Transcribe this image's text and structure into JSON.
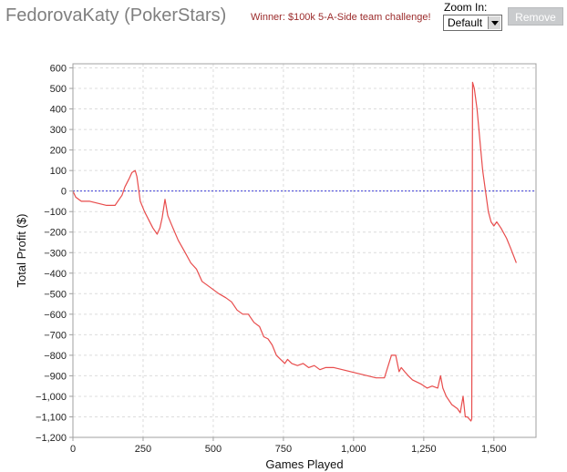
{
  "header": {
    "player_name": "FedorovaKaty (PokerStars)",
    "award": "Winner: $100k 5-A-Side team challenge!",
    "zoom_label": "Zoom In:",
    "zoom_value": "Default",
    "remove_label": "Remove"
  },
  "colors": {
    "series": "#e84c4c",
    "zero_line": "#3b3bd6",
    "grid": "#dcdcdc",
    "axis": "#a0a0a0"
  },
  "chart_data": {
    "type": "line",
    "title": "",
    "xlabel": "Games Played",
    "ylabel": "Total Profit ($)",
    "xlim": [
      0,
      1650
    ],
    "ylim": [
      -1200,
      620
    ],
    "xticks": [
      0,
      250,
      500,
      750,
      1000,
      1250,
      1500
    ],
    "xtick_labels": [
      "0",
      "250",
      "500",
      "750",
      "1,000",
      "1,250",
      "1,500"
    ],
    "yticks": [
      600,
      500,
      400,
      300,
      200,
      100,
      0,
      -100,
      -200,
      -300,
      -400,
      -500,
      -600,
      -700,
      -800,
      -900,
      -1000,
      -1100,
      -1200
    ],
    "ytick_labels": [
      "600",
      "500",
      "400",
      "300",
      "200",
      "100",
      "0",
      "−100",
      "−200",
      "−300",
      "−400",
      "−500",
      "−600",
      "−700",
      "−800",
      "−900",
      "−1,000",
      "−1,100",
      "−1,200"
    ],
    "grid": true,
    "reference_line_y": 0,
    "series": [
      {
        "x": [
          0,
          10,
          30,
          60,
          90,
          120,
          150,
          165,
          175,
          185,
          200,
          210,
          222,
          228,
          240,
          255,
          270,
          285,
          300,
          310,
          318,
          328,
          338,
          350,
          375,
          400,
          420,
          440,
          460,
          480,
          500,
          520,
          545,
          565,
          585,
          605,
          625,
          645,
          665,
          680,
          695,
          710,
          725,
          740,
          755,
          765,
          780,
          800,
          820,
          840,
          860,
          880,
          900,
          930,
          960,
          990,
          1020,
          1050,
          1080,
          1110,
          1135,
          1150,
          1162,
          1170,
          1182,
          1195,
          1210,
          1240,
          1262,
          1280,
          1300,
          1310,
          1318,
          1330,
          1350,
          1370,
          1380,
          1390,
          1398,
          1405,
          1412,
          1418,
          1421,
          1424,
          1430,
          1440,
          1450,
          1460,
          1470,
          1480,
          1490,
          1500,
          1510,
          1525,
          1545,
          1560,
          1580
        ],
        "y": [
          0,
          -30,
          -50,
          -50,
          -60,
          -70,
          -70,
          -40,
          -20,
          20,
          60,
          90,
          100,
          70,
          -50,
          -100,
          -140,
          -180,
          -210,
          -180,
          -130,
          -40,
          -120,
          -160,
          -240,
          -300,
          -350,
          -380,
          -440,
          -460,
          -480,
          -500,
          -520,
          -540,
          -580,
          -600,
          -600,
          -640,
          -660,
          -710,
          -720,
          -750,
          -800,
          -820,
          -840,
          -820,
          -840,
          -850,
          -840,
          -860,
          -850,
          -870,
          -860,
          -860,
          -870,
          -880,
          -890,
          -900,
          -910,
          -910,
          -800,
          -800,
          -880,
          -860,
          -880,
          -900,
          -920,
          -940,
          -960,
          -950,
          -960,
          -900,
          -960,
          -1000,
          -1040,
          -1060,
          -1080,
          -1000,
          -1100,
          -1100,
          -1110,
          -1120,
          -1110,
          530,
          500,
          400,
          250,
          100,
          0,
          -100,
          -150,
          -170,
          -150,
          -180,
          -230,
          -280,
          -350
        ]
      }
    ]
  }
}
